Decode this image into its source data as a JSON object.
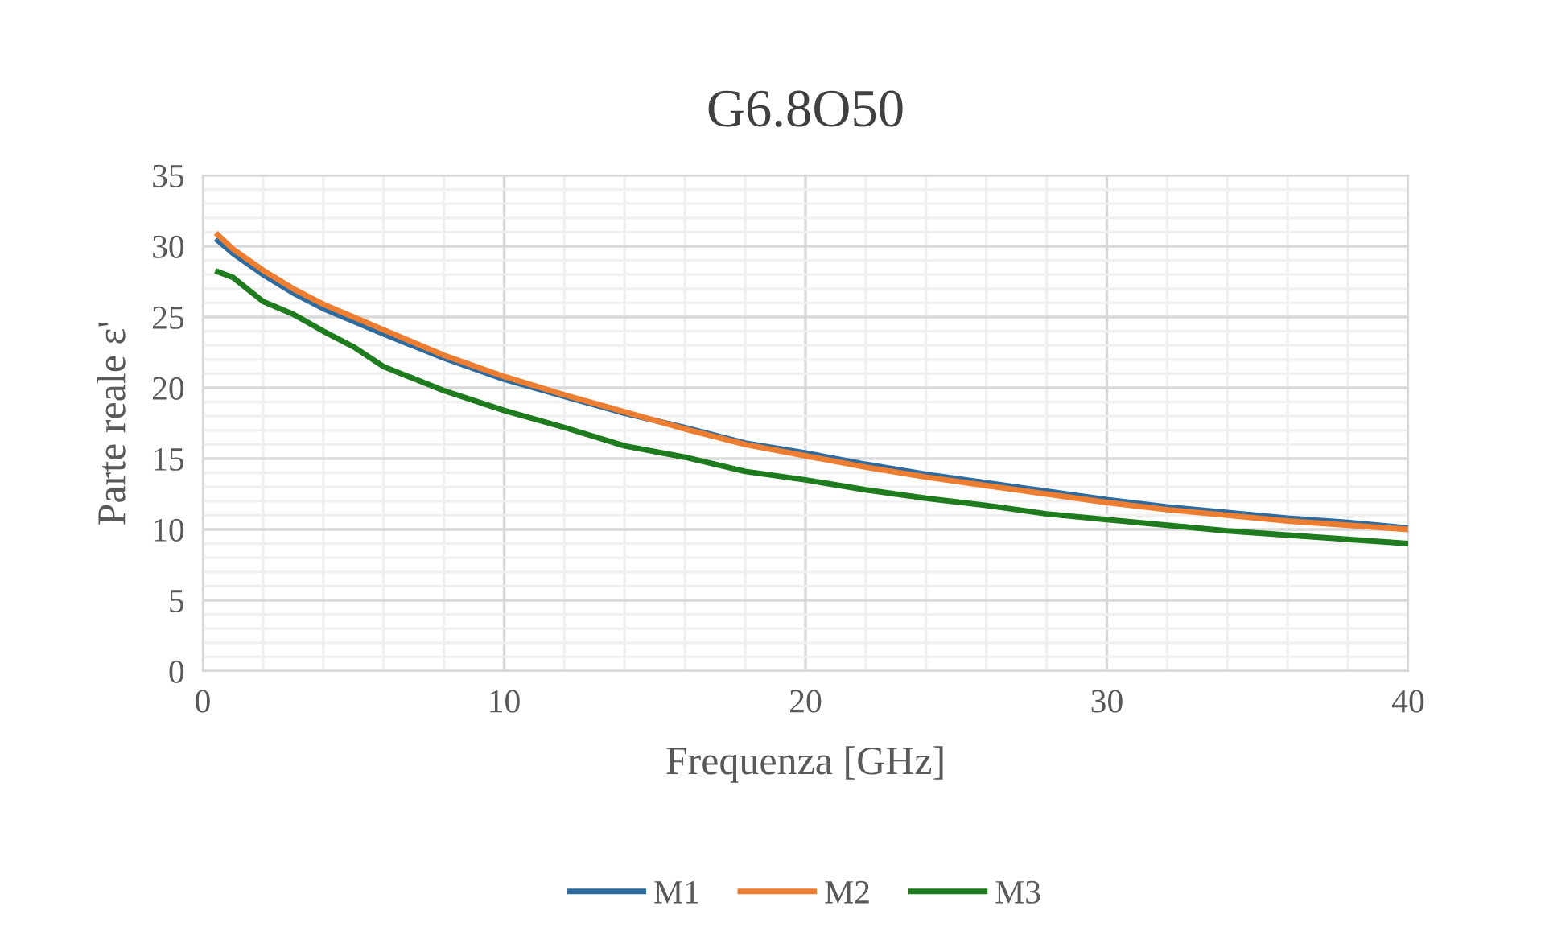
{
  "chart_data": {
    "type": "line",
    "title": "G6.8O50",
    "xlabel": "Frequenza [GHz]",
    "ylabel": "Parte reale ε'",
    "xlim": [
      0,
      40
    ],
    "xticks": [
      0,
      10,
      20,
      30,
      40
    ],
    "ylim": [
      0,
      35
    ],
    "yticks": [
      0,
      5,
      10,
      15,
      20,
      25,
      30,
      35
    ],
    "grid": true,
    "legend": "bottom",
    "marker": "none",
    "line_style": "solid",
    "x": [
      0.5,
      1,
      2,
      3,
      4,
      5,
      6,
      8,
      10,
      12,
      14,
      16,
      18,
      20,
      22,
      24,
      26,
      28,
      30,
      32,
      34,
      36,
      38,
      40
    ],
    "series": [
      {
        "name": "M1",
        "color": "#2e6b9e",
        "values": [
          30.4,
          29.5,
          28.0,
          26.7,
          25.6,
          24.7,
          23.8,
          22.1,
          20.6,
          19.4,
          18.2,
          17.2,
          16.1,
          15.4,
          14.6,
          13.9,
          13.3,
          12.7,
          12.1,
          11.6,
          11.2,
          10.8,
          10.5,
          10.1
        ]
      },
      {
        "name": "M2",
        "color": "#ed7d31",
        "values": [
          30.8,
          29.8,
          28.3,
          27.0,
          25.9,
          25.0,
          24.1,
          22.3,
          20.8,
          19.5,
          18.3,
          17.1,
          16.0,
          15.2,
          14.4,
          13.7,
          13.1,
          12.5,
          11.9,
          11.4,
          11.0,
          10.6,
          10.3,
          10.0
        ]
      },
      {
        "name": "M3",
        "color": "#1e7b1e",
        "values": [
          28.2,
          27.8,
          26.1,
          25.2,
          24.0,
          22.9,
          21.5,
          19.8,
          18.4,
          17.2,
          15.9,
          15.1,
          14.1,
          13.5,
          12.8,
          12.2,
          11.7,
          11.1,
          10.7,
          10.3,
          9.9,
          9.6,
          9.3,
          9.0
        ]
      }
    ]
  }
}
